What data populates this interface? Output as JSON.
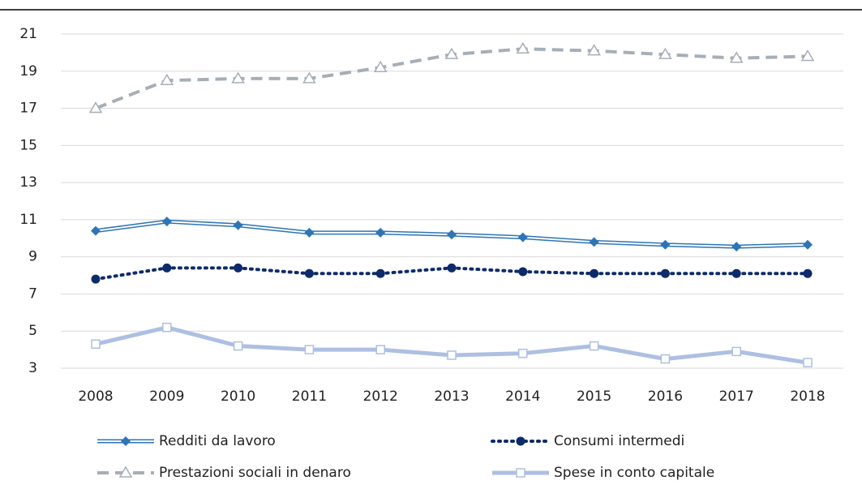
{
  "chart_data": {
    "type": "line",
    "categories": [
      "2008",
      "2009",
      "2010",
      "2011",
      "2012",
      "2013",
      "2014",
      "2015",
      "2016",
      "2017",
      "2018"
    ],
    "ylim": [
      3,
      21
    ],
    "yticks": [
      3,
      5,
      7,
      9,
      11,
      13,
      15,
      17,
      19,
      21
    ],
    "grid": true,
    "legend": "bottom",
    "series": [
      {
        "name": "Redditi da lavoro",
        "color": "#2e75b6",
        "style": "double",
        "marker": "diamond",
        "values": [
          10.4,
          10.9,
          10.7,
          10.3,
          10.3,
          10.2,
          10.05,
          9.8,
          9.65,
          9.55,
          9.65
        ]
      },
      {
        "name": "Consumi intermedi",
        "color": "#0d2a6b",
        "style": "dotted",
        "marker": "circle",
        "values": [
          7.8,
          8.4,
          8.4,
          8.1,
          8.1,
          8.4,
          8.2,
          8.1,
          8.1,
          8.1,
          8.1
        ]
      },
      {
        "name": "Prestazioni sociali in denaro",
        "color": "#a6aeb8",
        "style": "dashed",
        "marker": "triangle",
        "values": [
          17.0,
          18.5,
          18.6,
          18.6,
          19.2,
          19.9,
          20.2,
          20.1,
          19.9,
          19.7,
          19.8
        ]
      },
      {
        "name": "Spese in conto capitale",
        "color": "#adbfe2",
        "style": "solid",
        "marker": "square",
        "values": [
          4.3,
          5.2,
          4.2,
          4.0,
          4.0,
          3.7,
          3.8,
          4.2,
          3.5,
          3.9,
          3.3
        ]
      }
    ]
  }
}
